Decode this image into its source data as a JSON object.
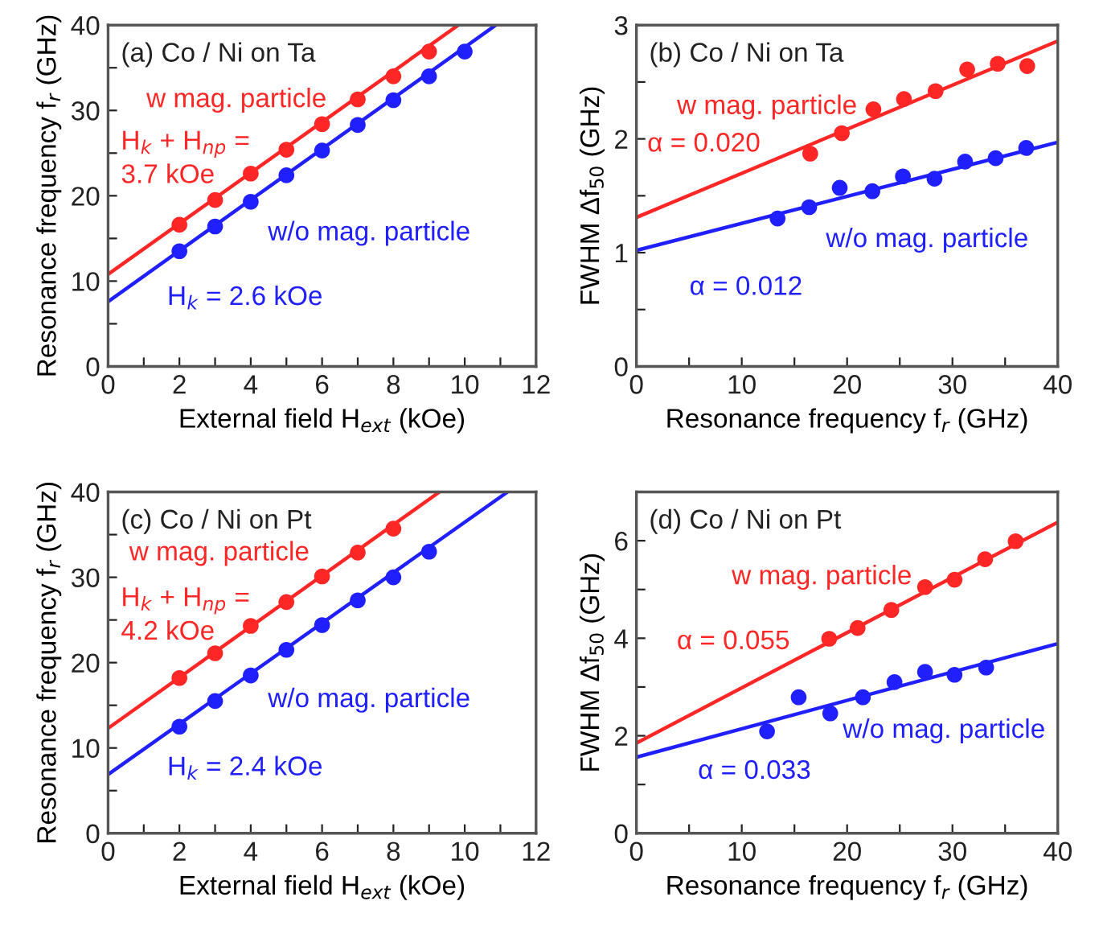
{
  "chart_data": [
    {
      "type": "scatter",
      "title": "(a) Co / Ni on Ta",
      "xlabel": "External field H$_{ext}$ (kOe)",
      "ylabel": "Resonance frequency f$_{r}$ (GHz)",
      "xlim": [
        0,
        12
      ],
      "ylim": [
        0,
        40
      ],
      "xticks": [
        0,
        {
          "value": 1,
          "label": null
        },
        2,
        {
          "value": 3,
          "label": null
        },
        4,
        {
          "value": 5,
          "label": null
        },
        6,
        {
          "value": 7,
          "label": null
        },
        8,
        {
          "value": 9,
          "label": null
        },
        10,
        {
          "value": 11,
          "label": null
        },
        12
      ],
      "yticks": [
        0,
        {
          "value": 5,
          "label": null
        },
        10,
        {
          "value": 15,
          "label": null
        },
        20,
        {
          "value": 25,
          "label": null
        },
        30,
        {
          "value": 35,
          "label": null
        },
        40
      ],
      "legend": false,
      "grid": false,
      "series": [
        {
          "marker": "circle",
          "name": "w mag. particle",
          "color": "#ff2626",
          "x": [
            2,
            3,
            4,
            5,
            6,
            7,
            8,
            9
          ],
          "values": [
            16.6,
            19.5,
            22.6,
            25.4,
            28.4,
            31.3,
            34.0,
            36.9
          ]
        },
        {
          "marker": "circle",
          "name": "w/o mag. particle",
          "color": "#1f1fff",
          "x": [
            2,
            3,
            4,
            5,
            6,
            7,
            8,
            9,
            10
          ],
          "values": [
            13.5,
            16.4,
            19.3,
            22.4,
            25.3,
            28.3,
            31.2,
            34.0,
            36.9
          ]
        },
        {
          "type": "line",
          "color": "#ff2626",
          "x": [
            0,
            9.82
          ],
          "values": [
            10.8,
            40
          ]
        },
        {
          "type": "line",
          "color": "#1f1fff",
          "x": [
            0,
            10.87
          ],
          "values": [
            7.6,
            40
          ]
        }
      ],
      "annotations": [
        "H$_{k}$ + H$_{np}$ =\n3.7 kOe",
        "H$_{k}$ = 2.6 kOe"
      ]
    },
    {
      "type": "scatter",
      "title": "(b) Co / Ni on Ta",
      "xlabel": "Resonance frequency f$_{r}$ (GHz)",
      "ylabel": "FWHM Δf$_{50}$ (GHz)",
      "xlim": [
        0,
        40
      ],
      "ylim": [
        0,
        3
      ],
      "xticks": [
        0,
        {
          "value": 5,
          "label": null
        },
        10,
        {
          "value": 15,
          "label": null
        },
        20,
        {
          "value": 25,
          "label": null
        },
        30,
        {
          "value": 35,
          "label": null
        },
        40
      ],
      "yticks": [
        0,
        {
          "value": 0.5,
          "label": null
        },
        1,
        {
          "value": 1.5,
          "label": null
        },
        2,
        {
          "value": 2.5,
          "label": null
        },
        3
      ],
      "legend": false,
      "grid": false,
      "series": [
        {
          "marker": "circle",
          "name": "w mag. particle",
          "color": "#ff2626",
          "x": [
            16.5,
            19.5,
            22.5,
            25.4,
            28.4,
            31.4,
            34.3,
            37.1
          ],
          "values": [
            1.87,
            2.05,
            2.26,
            2.35,
            2.42,
            2.61,
            2.66,
            2.64
          ]
        },
        {
          "marker": "circle",
          "name": "w/o mag. particle",
          "color": "#1f1fff",
          "x": [
            13.4,
            16.4,
            19.3,
            22.4,
            25.3,
            28.3,
            31.2,
            34.1,
            37.0
          ],
          "values": [
            1.3,
            1.4,
            1.57,
            1.54,
            1.67,
            1.65,
            1.8,
            1.83,
            1.92
          ]
        },
        {
          "type": "line",
          "color": "#ff2626",
          "x": [
            0,
            40
          ],
          "values": [
            1.31,
            2.86
          ]
        },
        {
          "type": "line",
          "color": "#1f1fff",
          "x": [
            0,
            40
          ],
          "values": [
            1.02,
            1.97
          ]
        }
      ],
      "annotations": [
        "α = 0.020",
        "α = 0.012"
      ]
    },
    {
      "type": "scatter",
      "title": "(c) Co / Ni on Pt",
      "xlabel": "External field H$_{ext}$ (kOe)",
      "ylabel": "Resonance frequency f$_{r}$ (GHz)",
      "xlim": [
        0,
        12
      ],
      "ylim": [
        0,
        40
      ],
      "xticks": [
        0,
        {
          "value": 1,
          "label": null
        },
        2,
        {
          "value": 3,
          "label": null
        },
        4,
        {
          "value": 5,
          "label": null
        },
        6,
        {
          "value": 7,
          "label": null
        },
        8,
        {
          "value": 9,
          "label": null
        },
        10,
        {
          "value": 11,
          "label": null
        },
        12
      ],
      "yticks": [
        0,
        {
          "value": 5,
          "label": null
        },
        10,
        {
          "value": 15,
          "label": null
        },
        20,
        {
          "value": 25,
          "label": null
        },
        30,
        {
          "value": 35,
          "label": null
        },
        40
      ],
      "legend": false,
      "grid": false,
      "series": [
        {
          "marker": "circle",
          "name": "w mag. particle",
          "color": "#ff2626",
          "x": [
            2,
            3,
            4,
            5,
            6,
            7,
            8
          ],
          "values": [
            18.2,
            21.1,
            24.3,
            27.1,
            30.1,
            32.9,
            35.7
          ]
        },
        {
          "marker": "circle",
          "name": "w/o mag. particle",
          "color": "#1f1fff",
          "x": [
            2,
            3,
            4,
            5,
            6,
            7,
            8,
            9
          ],
          "values": [
            12.5,
            15.5,
            18.5,
            21.5,
            24.4,
            27.3,
            30.0,
            33.0
          ]
        },
        {
          "type": "line",
          "color": "#ff2626",
          "x": [
            0,
            9.29
          ],
          "values": [
            12.3,
            40
          ]
        },
        {
          "type": "line",
          "color": "#1f1fff",
          "x": [
            0,
            11.2
          ],
          "values": [
            6.9,
            40
          ]
        }
      ],
      "annotations": [
        "H$_{k}$ + H$_{np}$ =\n4.2 kOe",
        "H$_{k}$ = 2.4 kOe"
      ]
    },
    {
      "type": "scatter",
      "title": "(d) Co / Ni on Pt",
      "xlabel": "Resonance frequency f$_{r}$ (GHz)",
      "ylabel": "FWHM Δf$_{50}$ (GHz)",
      "xlim": [
        0,
        40
      ],
      "ylim": [
        0,
        7
      ],
      "xticks": [
        0,
        {
          "value": 5,
          "label": null
        },
        10,
        {
          "value": 15,
          "label": null
        },
        20,
        {
          "value": 25,
          "label": null
        },
        30,
        {
          "value": 35,
          "label": null
        },
        40
      ],
      "yticks": [
        0,
        {
          "value": 1,
          "label": null
        },
        2,
        {
          "value": 3,
          "label": null
        },
        4,
        {
          "value": 5,
          "label": null
        },
        6,
        {
          "value": 7,
          "label": null
        }
      ],
      "legend": false,
      "grid": false,
      "series": [
        {
          "marker": "circle",
          "name": "w mag. particle",
          "color": "#ff2626",
          "x": [
            18.3,
            21.0,
            24.2,
            27.4,
            30.2,
            33.1,
            36.0
          ],
          "values": [
            3.99,
            4.21,
            4.58,
            5.05,
            5.2,
            5.62,
            5.99
          ]
        },
        {
          "marker": "circle",
          "name": "w/o mag. particle",
          "color": "#1f1fff",
          "x": [
            12.4,
            15.4,
            18.4,
            21.5,
            24.5,
            27.4,
            30.2,
            33.2
          ],
          "values": [
            2.09,
            2.79,
            2.46,
            2.79,
            3.1,
            3.31,
            3.25,
            3.4
          ]
        },
        {
          "type": "line",
          "color": "#ff2626",
          "x": [
            0,
            40
          ],
          "values": [
            1.85,
            6.38
          ]
        },
        {
          "type": "line",
          "color": "#1f1fff",
          "x": [
            0,
            40
          ],
          "values": [
            1.56,
            3.89
          ]
        }
      ],
      "annotations": [
        "α = 0.055",
        "α = 0.033"
      ]
    }
  ]
}
